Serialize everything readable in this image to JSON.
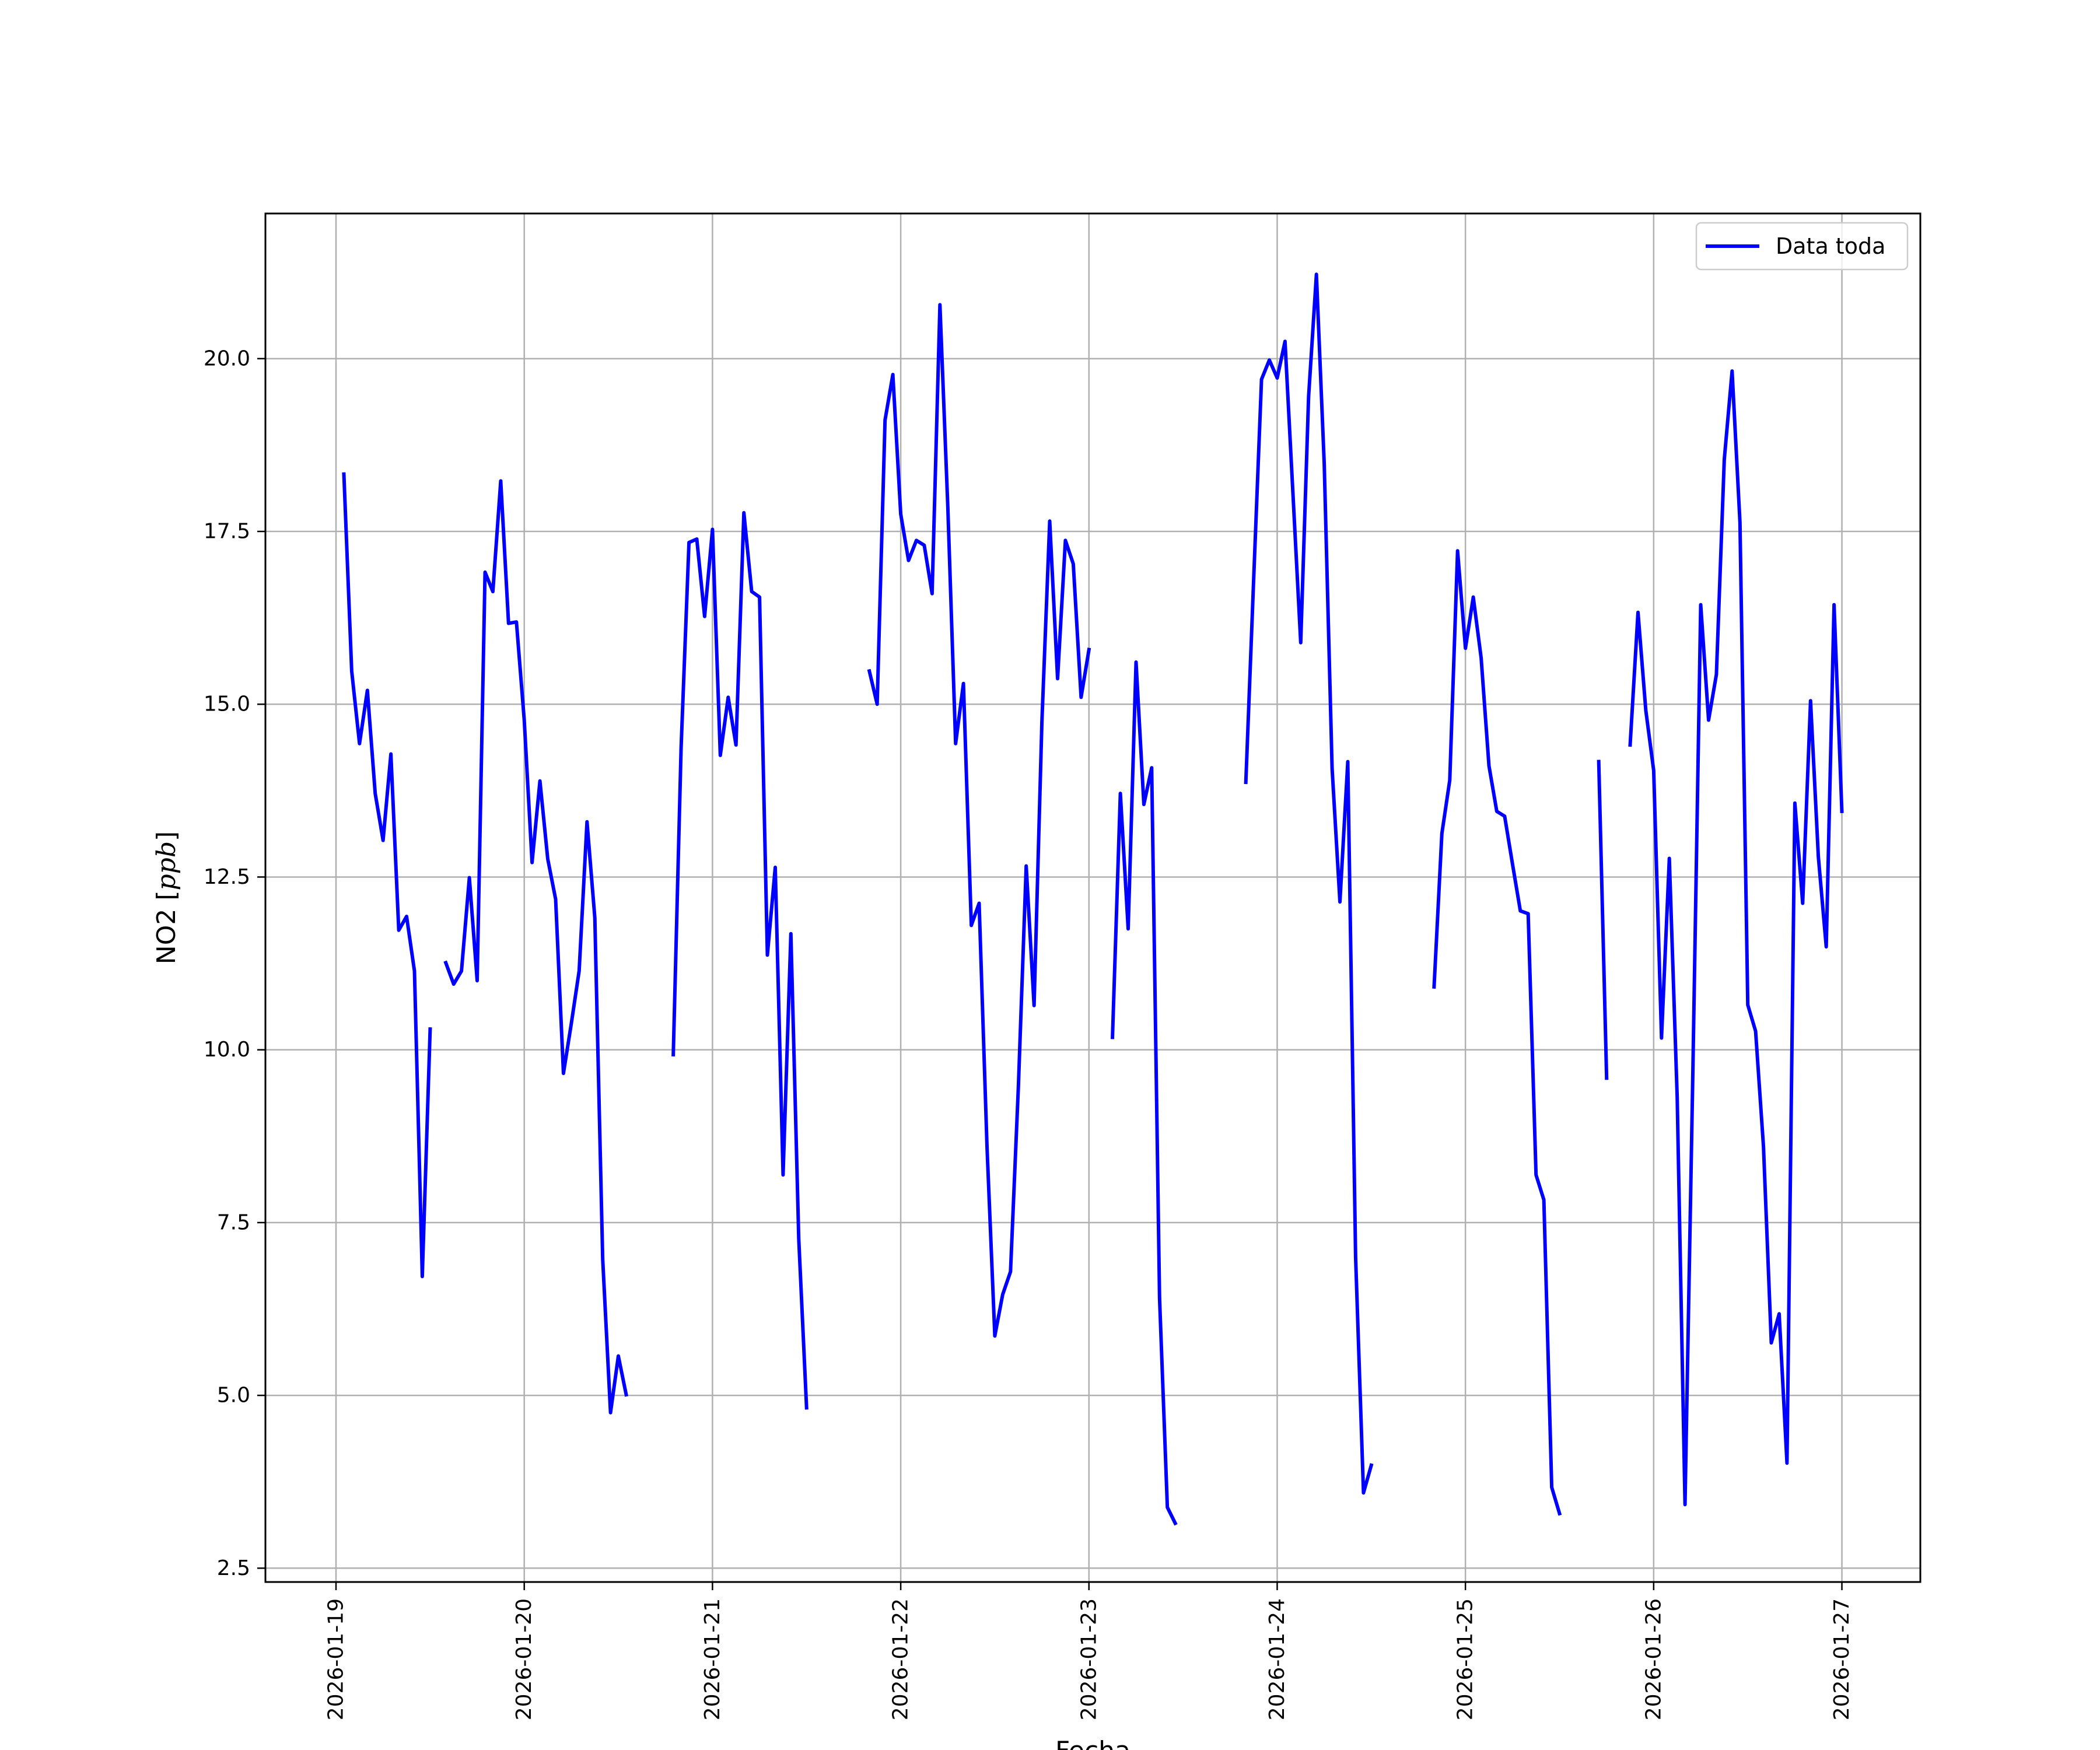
{
  "chart_data": {
    "type": "line",
    "title": "",
    "xlabel": "Fecha",
    "ylabel_main": "NO2 [",
    "ylabel_unit": "ppb",
    "ylabel_close": "]",
    "xlim": [
      "2026-01-18T15:00",
      "2026-01-27T10:00"
    ],
    "ylim": [
      2.3,
      22.1
    ],
    "x_ticks": [
      "2026-01-19",
      "2026-01-20",
      "2026-01-21",
      "2026-01-22",
      "2026-01-23",
      "2026-01-24",
      "2026-01-25",
      "2026-01-26",
      "2026-01-27"
    ],
    "y_ticks": [
      "2.5",
      "5.0",
      "7.5",
      "10.0",
      "12.5",
      "15.0",
      "17.5",
      "20.0"
    ],
    "grid": true,
    "legend_position": "top-right",
    "series": [
      {
        "name": "Data toda",
        "color": "#0000ff",
        "points": [
          [
            "2026-01-19T01:00",
            18.33
          ],
          [
            "2026-01-19T02:00",
            15.48
          ],
          [
            "2026-01-19T03:00",
            14.43
          ],
          [
            "2026-01-19T04:00",
            15.2
          ],
          [
            "2026-01-19T05:00",
            13.71
          ],
          [
            "2026-01-19T06:00",
            13.03
          ],
          [
            "2026-01-19T07:00",
            14.28
          ],
          [
            "2026-01-19T08:00",
            11.73
          ],
          [
            "2026-01-19T09:00",
            11.93
          ],
          [
            "2026-01-19T10:00",
            11.14
          ],
          [
            "2026-01-19T11:00",
            6.72
          ],
          [
            "2026-01-19T12:00",
            10.3
          ],
          null,
          [
            "2026-01-19T14:00",
            11.26
          ],
          [
            "2026-01-19T15:00",
            10.95
          ],
          [
            "2026-01-19T16:00",
            11.14
          ],
          [
            "2026-01-19T17:00",
            12.49
          ],
          [
            "2026-01-19T18:00",
            11.0
          ],
          [
            "2026-01-19T19:00",
            16.91
          ],
          [
            "2026-01-19T20:00",
            16.63
          ],
          [
            "2026-01-19T21:00",
            18.23
          ],
          [
            "2026-01-19T22:00",
            16.17
          ],
          [
            "2026-01-19T23:00",
            16.19
          ],
          [
            "2026-01-20T00:00",
            14.77
          ],
          [
            "2026-01-20T01:00",
            12.71
          ],
          [
            "2026-01-20T02:00",
            13.89
          ],
          [
            "2026-01-20T03:00",
            12.76
          ],
          [
            "2026-01-20T04:00",
            12.18
          ],
          [
            "2026-01-20T05:00",
            9.66
          ],
          [
            "2026-01-20T06:00",
            10.38
          ],
          [
            "2026-01-20T07:00",
            11.14
          ],
          [
            "2026-01-20T08:00",
            13.3
          ],
          [
            "2026-01-20T09:00",
            11.91
          ],
          [
            "2026-01-20T10:00",
            6.97
          ],
          [
            "2026-01-20T11:00",
            4.75
          ],
          [
            "2026-01-20T12:00",
            5.57
          ],
          [
            "2026-01-20T13:00",
            5.01
          ],
          null,
          [
            "2026-01-20T19:00",
            9.93
          ],
          [
            "2026-01-20T20:00",
            14.37
          ],
          [
            "2026-01-20T21:00",
            17.34
          ],
          [
            "2026-01-20T22:00",
            17.39
          ],
          [
            "2026-01-20T23:00",
            16.27
          ],
          [
            "2026-01-21T00:00",
            17.53
          ],
          [
            "2026-01-21T01:00",
            14.26
          ],
          [
            "2026-01-21T02:00",
            15.1
          ],
          [
            "2026-01-21T03:00",
            14.41
          ],
          [
            "2026-01-21T04:00",
            17.77
          ],
          [
            "2026-01-21T05:00",
            16.63
          ],
          [
            "2026-01-21T06:00",
            16.55
          ],
          [
            "2026-01-21T07:00",
            11.37
          ],
          [
            "2026-01-21T08:00",
            12.64
          ],
          [
            "2026-01-21T09:00",
            8.19
          ],
          [
            "2026-01-21T10:00",
            11.68
          ],
          [
            "2026-01-21T11:00",
            7.26
          ],
          [
            "2026-01-21T12:00",
            4.82
          ],
          null,
          [
            "2026-01-21T20:00",
            15.48
          ],
          [
            "2026-01-21T21:00",
            15.0
          ],
          [
            "2026-01-21T22:00",
            19.11
          ],
          [
            "2026-01-21T23:00",
            19.77
          ],
          [
            "2026-01-22T00:00",
            17.75
          ],
          [
            "2026-01-22T01:00",
            17.08
          ],
          [
            "2026-01-22T02:00",
            17.37
          ],
          [
            "2026-01-22T03:00",
            17.3
          ],
          [
            "2026-01-22T04:00",
            16.6
          ],
          [
            "2026-01-22T05:00",
            20.78
          ],
          [
            "2026-01-22T06:00",
            17.86
          ],
          [
            "2026-01-22T07:00",
            14.43
          ],
          [
            "2026-01-22T08:00",
            15.3
          ],
          [
            "2026-01-22T09:00",
            11.8
          ],
          [
            "2026-01-22T10:00",
            12.12
          ],
          [
            "2026-01-22T11:00",
            8.6
          ],
          [
            "2026-01-22T12:00",
            5.86
          ],
          [
            "2026-01-22T13:00",
            6.46
          ],
          [
            "2026-01-22T14:00",
            6.79
          ],
          [
            "2026-01-22T15:00",
            9.47
          ],
          [
            "2026-01-22T16:00",
            12.66
          ],
          [
            "2026-01-22T17:00",
            10.64
          ],
          [
            "2026-01-22T18:00",
            14.74
          ],
          [
            "2026-01-22T19:00",
            17.65
          ],
          [
            "2026-01-22T20:00",
            15.37
          ],
          [
            "2026-01-22T21:00",
            17.37
          ],
          [
            "2026-01-22T22:00",
            17.03
          ],
          [
            "2026-01-22T23:00",
            15.1
          ],
          [
            "2026-01-23T00:00",
            15.79
          ],
          null,
          [
            "2026-01-23T03:00",
            10.18
          ],
          [
            "2026-01-23T04:00",
            13.71
          ],
          [
            "2026-01-23T05:00",
            11.75
          ],
          [
            "2026-01-23T06:00",
            15.61
          ],
          [
            "2026-01-23T07:00",
            13.55
          ],
          [
            "2026-01-23T08:00",
            14.08
          ],
          [
            "2026-01-23T09:00",
            6.41
          ],
          [
            "2026-01-23T10:00",
            3.38
          ],
          [
            "2026-01-23T11:00",
            3.15
          ],
          null,
          [
            "2026-01-23T20:00",
            13.87
          ],
          [
            "2026-01-23T21:00",
            16.8
          ],
          [
            "2026-01-23T22:00",
            19.7
          ],
          [
            "2026-01-23T23:00",
            19.98
          ],
          [
            "2026-01-24T00:00",
            19.72
          ],
          [
            "2026-01-24T01:00",
            20.25
          ],
          [
            "2026-01-24T02:00",
            18.06
          ],
          [
            "2026-01-24T03:00",
            15.89
          ],
          [
            "2026-01-24T04:00",
            19.45
          ],
          [
            "2026-01-24T05:00",
            21.22
          ],
          [
            "2026-01-24T06:00",
            18.48
          ],
          [
            "2026-01-24T07:00",
            14.07
          ],
          [
            "2026-01-24T08:00",
            12.14
          ],
          [
            "2026-01-24T09:00",
            14.17
          ],
          [
            "2026-01-24T10:00",
            7.0
          ],
          [
            "2026-01-24T11:00",
            3.59
          ],
          [
            "2026-01-24T12:00",
            3.99
          ],
          null,
          [
            "2026-01-24T20:00",
            10.91
          ],
          [
            "2026-01-24T21:00",
            13.13
          ],
          [
            "2026-01-24T22:00",
            13.9
          ],
          [
            "2026-01-24T23:00",
            17.22
          ],
          [
            "2026-01-25T00:00",
            15.81
          ],
          [
            "2026-01-25T01:00",
            16.55
          ],
          [
            "2026-01-25T02:00",
            15.67
          ],
          [
            "2026-01-25T03:00",
            14.11
          ],
          [
            "2026-01-25T04:00",
            13.45
          ],
          [
            "2026-01-25T05:00",
            13.38
          ],
          [
            "2026-01-25T06:00",
            12.69
          ],
          [
            "2026-01-25T07:00",
            12.01
          ],
          [
            "2026-01-25T08:00",
            11.97
          ],
          [
            "2026-01-25T09:00",
            8.19
          ],
          [
            "2026-01-25T10:00",
            7.83
          ],
          [
            "2026-01-25T11:00",
            3.67
          ],
          [
            "2026-01-25T12:00",
            3.29
          ],
          null,
          [
            "2026-01-25T17:00",
            14.17
          ],
          [
            "2026-01-25T18:00",
            9.59
          ],
          null,
          [
            "2026-01-25T21:00",
            14.41
          ],
          [
            "2026-01-25T22:00",
            16.33
          ],
          [
            "2026-01-25T23:00",
            14.91
          ],
          [
            "2026-01-26T00:00",
            14.04
          ],
          [
            "2026-01-26T01:00",
            10.17
          ],
          [
            "2026-01-26T02:00",
            12.77
          ],
          [
            "2026-01-26T03:00",
            9.31
          ],
          [
            "2026-01-26T04:00",
            3.42
          ],
          [
            "2026-01-26T05:00",
            9.71
          ],
          [
            "2026-01-26T06:00",
            16.44
          ],
          [
            "2026-01-26T07:00",
            14.77
          ],
          [
            "2026-01-26T08:00",
            15.43
          ],
          [
            "2026-01-26T09:00",
            18.54
          ],
          [
            "2026-01-26T10:00",
            19.82
          ],
          [
            "2026-01-26T11:00",
            17.63
          ],
          [
            "2026-01-26T12:00",
            10.65
          ],
          [
            "2026-01-26T13:00",
            10.27
          ],
          [
            "2026-01-26T14:00",
            8.6
          ],
          [
            "2026-01-26T15:00",
            5.76
          ],
          [
            "2026-01-26T16:00",
            6.18
          ],
          [
            "2026-01-26T17:00",
            4.02
          ],
          [
            "2026-01-26T18:00",
            13.57
          ],
          [
            "2026-01-26T19:00",
            12.12
          ],
          [
            "2026-01-26T20:00",
            15.05
          ],
          [
            "2026-01-26T21:00",
            12.79
          ],
          [
            "2026-01-26T22:00",
            11.49
          ],
          [
            "2026-01-26T23:00",
            16.44
          ],
          [
            "2026-01-27T00:00",
            13.45
          ]
        ]
      }
    ]
  }
}
